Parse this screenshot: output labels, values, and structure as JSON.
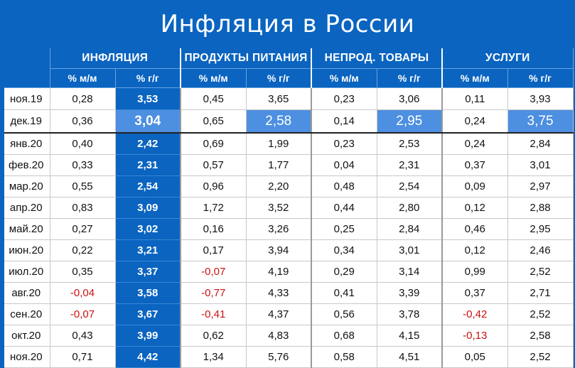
{
  "title": "Инфляция в России",
  "groups": [
    "ИНФЛЯЦИЯ",
    "ПРОДУКТЫ ПИТАНИЯ",
    "НЕПРОД. ТОВАРЫ",
    "УСЛУГИ"
  ],
  "subheaders": [
    "% м/м",
    "% г/г"
  ],
  "highlight_row": 1,
  "colors": {
    "header_blue": "#0a64c0",
    "highlight_blue": "#4d8fe0",
    "negative_red": "#cc1010"
  },
  "rows": [
    {
      "month": "ноя.19",
      "values": [
        "0,28",
        "3,53",
        "0,45",
        "3,65",
        "0,23",
        "3,06",
        "0,11",
        "3,93"
      ]
    },
    {
      "month": "дек.19",
      "values": [
        "0,36",
        "3,04",
        "0,65",
        "2,58",
        "0,14",
        "2,95",
        "0,24",
        "3,75"
      ]
    },
    {
      "month": "янв.20",
      "values": [
        "0,40",
        "2,42",
        "0,69",
        "1,99",
        "0,23",
        "2,53",
        "0,24",
        "2,84"
      ]
    },
    {
      "month": "фев.20",
      "values": [
        "0,33",
        "2,31",
        "0,57",
        "1,77",
        "0,04",
        "2,31",
        "0,37",
        "3,01"
      ]
    },
    {
      "month": "мар.20",
      "values": [
        "0,55",
        "2,54",
        "0,96",
        "2,20",
        "0,48",
        "2,54",
        "0,09",
        "2,97"
      ]
    },
    {
      "month": "апр.20",
      "values": [
        "0,83",
        "3,09",
        "1,72",
        "3,52",
        "0,44",
        "2,80",
        "0,12",
        "2,88"
      ]
    },
    {
      "month": "май.20",
      "values": [
        "0,27",
        "3,02",
        "0,16",
        "3,26",
        "0,25",
        "2,84",
        "0,46",
        "2,95"
      ]
    },
    {
      "month": "июн.20",
      "values": [
        "0,22",
        "3,21",
        "0,17",
        "3,94",
        "0,34",
        "3,01",
        "0,12",
        "2,46"
      ]
    },
    {
      "month": "июл.20",
      "values": [
        "0,35",
        "3,37",
        "-0,07",
        "4,19",
        "0,29",
        "3,14",
        "0,99",
        "2,52"
      ]
    },
    {
      "month": "авг.20",
      "values": [
        "-0,04",
        "3,58",
        "-0,77",
        "4,33",
        "0,41",
        "3,39",
        "0,37",
        "2,71"
      ]
    },
    {
      "month": "сен.20",
      "values": [
        "-0,07",
        "3,67",
        "-0,41",
        "4,37",
        "0,56",
        "3,78",
        "-0,42",
        "2,52"
      ]
    },
    {
      "month": "окт.20",
      "values": [
        "0,43",
        "3,99",
        "0,62",
        "4,83",
        "0,68",
        "4,15",
        "-0,13",
        "2,58"
      ]
    },
    {
      "month": "ноя.20",
      "values": [
        "0,71",
        "4,42",
        "1,34",
        "5,76",
        "0,58",
        "4,51",
        "0,05",
        "2,52"
      ]
    }
  ]
}
